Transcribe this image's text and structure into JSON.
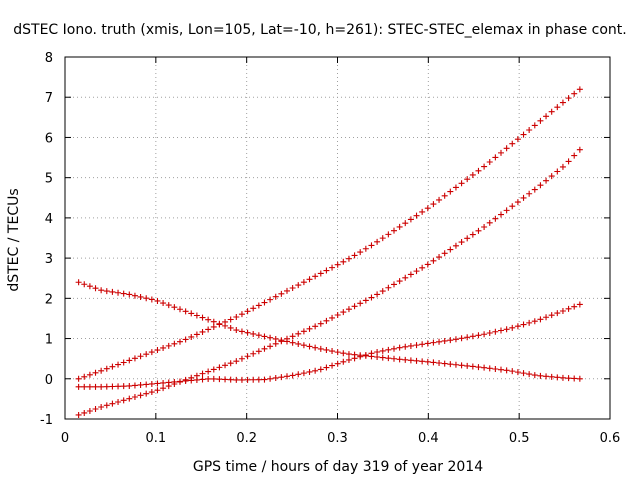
{
  "chart_data": {
    "type": "scatter",
    "title": "dSTEC Iono. truth (xmis, Lon=105, Lat=-10, h=261): STEC-STEC_elemax in phase cont.",
    "xlabel": "GPS time / hours of day 319 of year 2014",
    "ylabel": "dSTEC  / TECUs",
    "xlim": [
      0,
      0.6
    ],
    "ylim": [
      -1,
      8
    ],
    "xticks": [
      "0",
      "0.1",
      "0.2",
      "0.3",
      "0.4",
      "0.5",
      "0.6"
    ],
    "yticks": [
      "-1",
      "0",
      "1",
      "2",
      "3",
      "4",
      "5",
      "6",
      "7",
      "8"
    ],
    "grid": true,
    "marker_color": "#cc0000",
    "marker": "plus",
    "series": [
      {
        "x": [
          0.015,
          0.04,
          0.07,
          0.1,
          0.13,
          0.16,
          0.19,
          0.22,
          0.25,
          0.28,
          0.31,
          0.34,
          0.37,
          0.4,
          0.43,
          0.46,
          0.49,
          0.52,
          0.55,
          0.567
        ],
        "y": [
          0.0,
          0.2,
          0.45,
          0.7,
          0.95,
          1.25,
          1.55,
          1.9,
          2.25,
          2.6,
          2.95,
          3.35,
          3.8,
          4.25,
          4.75,
          5.25,
          5.8,
          6.35,
          6.9,
          7.2
        ]
      },
      {
        "x": [
          0.015,
          0.04,
          0.07,
          0.1,
          0.13,
          0.16,
          0.19,
          0.22,
          0.25,
          0.28,
          0.31,
          0.34,
          0.37,
          0.4,
          0.43,
          0.46,
          0.49,
          0.52,
          0.55,
          0.567
        ],
        "y": [
          -0.9,
          -0.7,
          -0.5,
          -0.3,
          -0.05,
          0.2,
          0.45,
          0.75,
          1.05,
          1.35,
          1.7,
          2.05,
          2.45,
          2.85,
          3.3,
          3.75,
          4.25,
          4.75,
          5.3,
          5.7
        ]
      },
      {
        "x": [
          0.015,
          0.04,
          0.07,
          0.1,
          0.13,
          0.16,
          0.19,
          0.22,
          0.25,
          0.28,
          0.31,
          0.34,
          0.37,
          0.4,
          0.43,
          0.46,
          0.49,
          0.52,
          0.55,
          0.567
        ],
        "y": [
          -0.2,
          -0.2,
          -0.18,
          -0.12,
          -0.06,
          0.0,
          -0.03,
          -0.02,
          0.08,
          0.22,
          0.45,
          0.65,
          0.78,
          0.88,
          0.98,
          1.1,
          1.25,
          1.45,
          1.7,
          1.85
        ]
      },
      {
        "x": [
          0.015,
          0.04,
          0.07,
          0.1,
          0.13,
          0.16,
          0.19,
          0.22,
          0.25,
          0.28,
          0.31,
          0.34,
          0.37,
          0.4,
          0.43,
          0.46,
          0.49,
          0.52,
          0.55,
          0.567
        ],
        "y": [
          2.4,
          2.2,
          2.1,
          1.95,
          1.7,
          1.45,
          1.2,
          1.05,
          0.9,
          0.75,
          0.62,
          0.55,
          0.48,
          0.42,
          0.35,
          0.28,
          0.2,
          0.08,
          0.02,
          0.0
        ]
      }
    ]
  }
}
